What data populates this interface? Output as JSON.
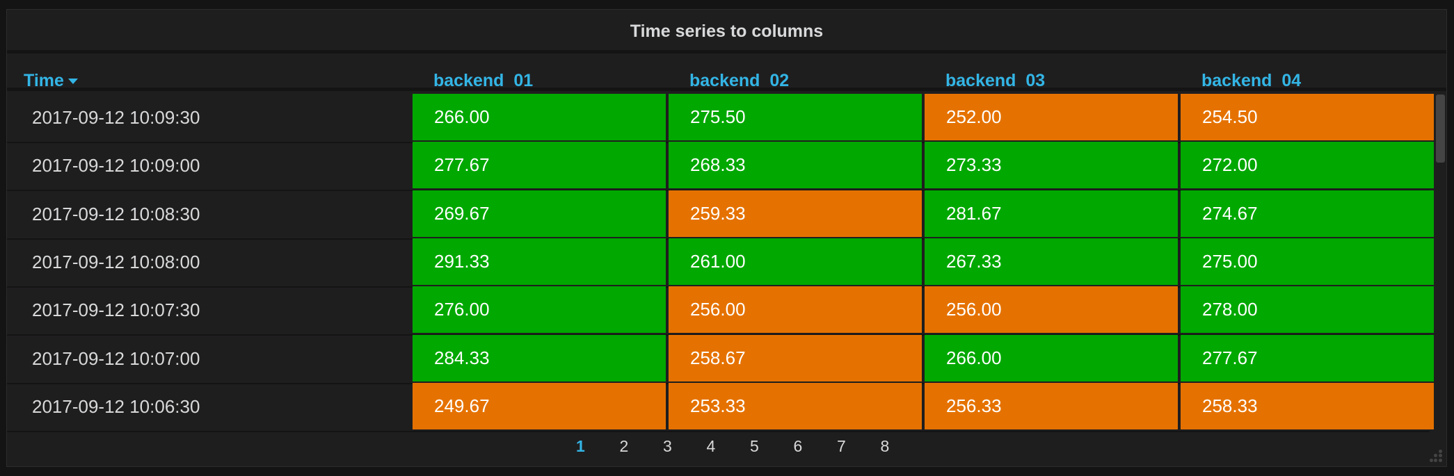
{
  "panel": {
    "title": "Time series to columns"
  },
  "colors": {
    "ok": "#00a800",
    "warn": "#e57200",
    "header": "#33b5e5"
  },
  "table": {
    "columns": [
      "Time",
      "backend_01",
      "backend_02",
      "backend_03",
      "backend_04"
    ],
    "sort": {
      "column": "Time",
      "direction": "desc",
      "icon": "caret-down-icon"
    },
    "rows": [
      {
        "time": "2017-09-12 10:09:30",
        "values": [
          "266.00",
          "275.50",
          "252.00",
          "254.50"
        ],
        "status": [
          "ok",
          "ok",
          "warn",
          "warn"
        ]
      },
      {
        "time": "2017-09-12 10:09:00",
        "values": [
          "277.67",
          "268.33",
          "273.33",
          "272.00"
        ],
        "status": [
          "ok",
          "ok",
          "ok",
          "ok"
        ]
      },
      {
        "time": "2017-09-12 10:08:30",
        "values": [
          "269.67",
          "259.33",
          "281.67",
          "274.67"
        ],
        "status": [
          "ok",
          "warn",
          "ok",
          "ok"
        ]
      },
      {
        "time": "2017-09-12 10:08:00",
        "values": [
          "291.33",
          "261.00",
          "267.33",
          "275.00"
        ],
        "status": [
          "ok",
          "ok",
          "ok",
          "ok"
        ]
      },
      {
        "time": "2017-09-12 10:07:30",
        "values": [
          "276.00",
          "256.00",
          "256.00",
          "278.00"
        ],
        "status": [
          "ok",
          "warn",
          "warn",
          "ok"
        ]
      },
      {
        "time": "2017-09-12 10:07:00",
        "values": [
          "284.33",
          "258.67",
          "266.00",
          "277.67"
        ],
        "status": [
          "ok",
          "warn",
          "ok",
          "ok"
        ]
      },
      {
        "time": "2017-09-12 10:06:30",
        "values": [
          "249.67",
          "253.33",
          "256.33",
          "258.33"
        ],
        "status": [
          "warn",
          "warn",
          "warn",
          "warn"
        ]
      }
    ]
  },
  "pagination": {
    "pages": [
      "1",
      "2",
      "3",
      "4",
      "5",
      "6",
      "7",
      "8"
    ],
    "current": "1"
  }
}
